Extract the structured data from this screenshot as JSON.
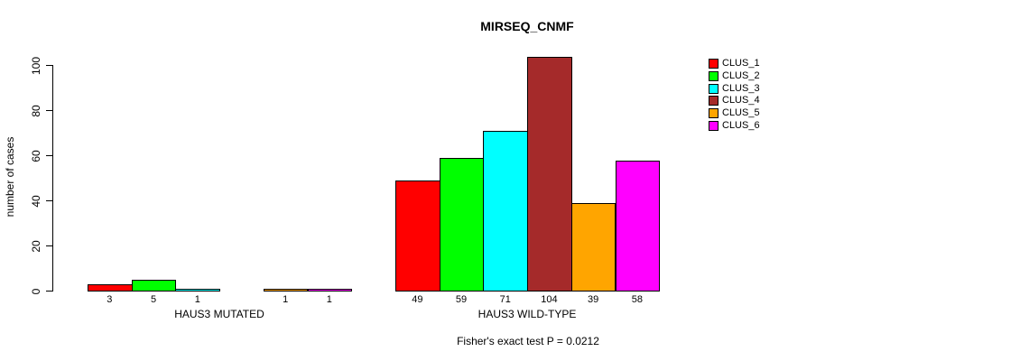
{
  "chart_data": {
    "type": "bar",
    "title": "MIRSEQ_CNMF",
    "ylabel": "number of cases",
    "ylim": [
      0,
      100
    ],
    "yticks": [
      0,
      20,
      40,
      60,
      80,
      100
    ],
    "grid": false,
    "legend_position": "right-inside",
    "categories": [
      "HAUS3 MUTATED",
      "HAUS3 WILD-TYPE"
    ],
    "series": [
      {
        "name": "CLUS_1",
        "color": "#FF0000",
        "values": [
          3,
          49
        ]
      },
      {
        "name": "CLUS_2",
        "color": "#00FF00",
        "values": [
          5,
          59
        ]
      },
      {
        "name": "CLUS_3",
        "color": "#00FFFF",
        "values": [
          1,
          71
        ]
      },
      {
        "name": "CLUS_4",
        "color": "#A52A2A",
        "values": [
          0,
          104
        ]
      },
      {
        "name": "CLUS_5",
        "color": "#FFA500",
        "values": [
          1,
          39
        ]
      },
      {
        "name": "CLUS_6",
        "color": "#FF00FF",
        "values": [
          1,
          58
        ]
      }
    ],
    "bar_value_labels": {
      "HAUS3 MUTATED": [
        "3",
        "5",
        "1",
        "",
        "1",
        "1"
      ],
      "HAUS3 WILD-TYPE": [
        "49",
        "59",
        "71",
        "104",
        "39",
        "58"
      ]
    },
    "footnote": "Fisher's exact test P = 0.0212"
  }
}
